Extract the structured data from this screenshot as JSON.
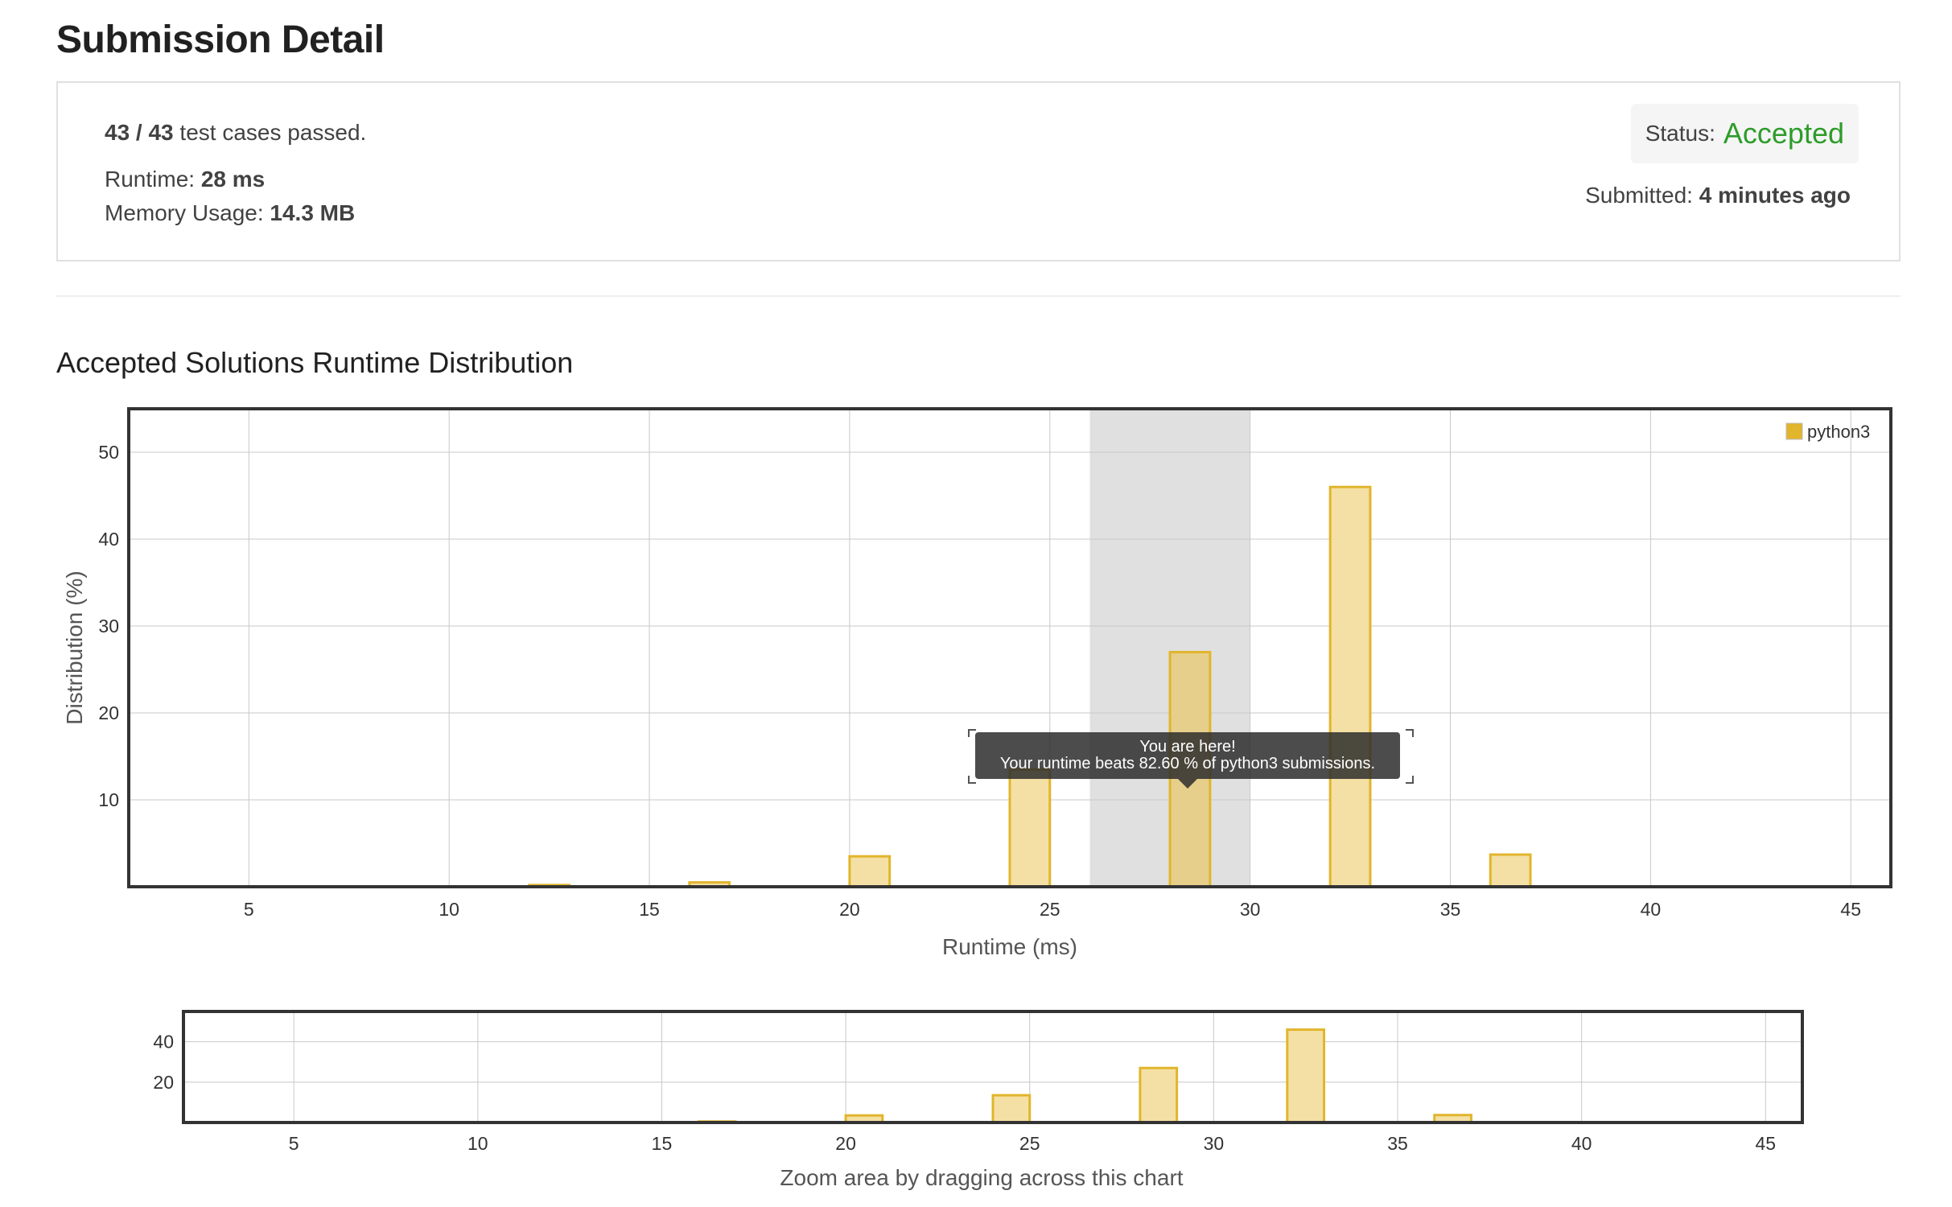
{
  "header": {
    "title": "Submission Detail"
  },
  "summary": {
    "tests_passed": "43 / 43",
    "tests_suffix": "test cases passed.",
    "runtime_label": "Runtime:",
    "runtime_value": "28 ms",
    "memory_label": "Memory Usage:",
    "memory_value": "14.3 MB",
    "status_label": "Status:",
    "status_value": "Accepted",
    "submitted_label": "Submitted:",
    "submitted_value": "4 minutes ago"
  },
  "colors": {
    "accepted": "#2e9c2b",
    "bar_fill": "#f4e0a4",
    "bar_stroke": "#e1b52c",
    "highlight_band": "#e0e0e0",
    "highlight_bar_fill": "#e6cf8a"
  },
  "section": {
    "title": "Accepted Solutions Runtime Distribution"
  },
  "tooltip": {
    "line1": "You are here!",
    "line2": "Your runtime beats 82.60 % of python3 submissions."
  },
  "overview": {
    "caption": "Zoom area by dragging across this chart"
  },
  "chart_data": [
    {
      "type": "bar",
      "title": "",
      "xlabel": "Runtime (ms)",
      "ylabel": "Distribution (%)",
      "xlim": [
        2,
        46
      ],
      "ylim": [
        0,
        55
      ],
      "x_ticks": [
        5,
        10,
        15,
        20,
        25,
        30,
        35,
        40,
        45
      ],
      "y_ticks": [
        10,
        20,
        30,
        40,
        50
      ],
      "legend": {
        "entries": [
          "python3"
        ],
        "placement": "top-right"
      },
      "series": [
        {
          "name": "python3",
          "x": [
            12.5,
            16.5,
            20.5,
            24.5,
            28.5,
            32.5,
            36.5
          ],
          "values": [
            0.2,
            0.5,
            3.5,
            13.5,
            27.0,
            46.0,
            3.7
          ],
          "bar_width": 1
        }
      ],
      "highlight_range": [
        26,
        30
      ],
      "highlighted_x": 28.5,
      "grid": true
    },
    {
      "type": "bar",
      "title": "",
      "xlabel": "",
      "ylabel": "",
      "xlim": [
        2,
        46
      ],
      "ylim": [
        0,
        55
      ],
      "x_ticks": [
        5,
        10,
        15,
        20,
        25,
        30,
        35,
        40,
        45
      ],
      "y_ticks": [
        20,
        40
      ],
      "series": [
        {
          "name": "python3",
          "x": [
            12.5,
            16.5,
            20.5,
            24.5,
            28.5,
            32.5,
            36.5
          ],
          "values": [
            0.2,
            0.5,
            3.5,
            13.5,
            27.0,
            46.0,
            3.7
          ],
          "bar_width": 1
        }
      ],
      "grid": true
    }
  ]
}
